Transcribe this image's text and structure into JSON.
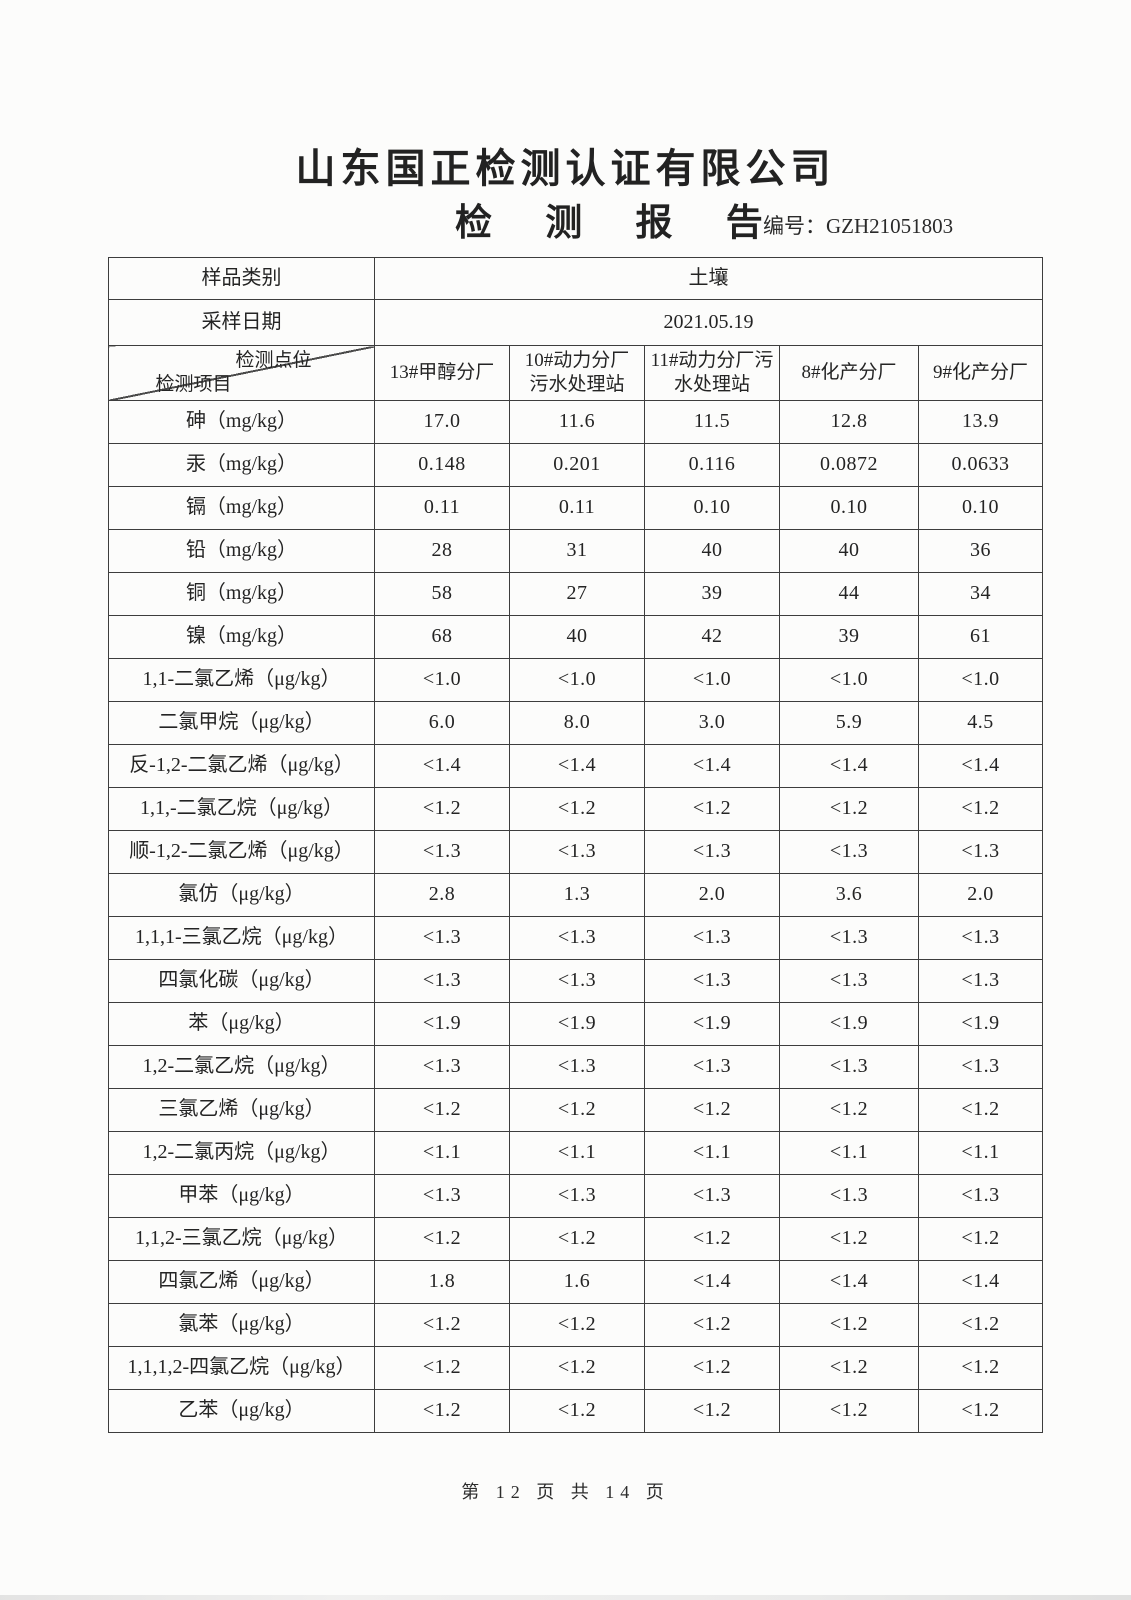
{
  "page": {
    "company": "山东国正检测认证有限公司",
    "report_title": "检 测 报 告",
    "report_no": "编号：GZH21051803",
    "footer": "第 12 页 共 14 页"
  },
  "table": {
    "sample_type_label": "样品类别",
    "sample_type": "土壤",
    "sampling_date_label": "采样日期",
    "sampling_date": "2021.05.19",
    "corner_top": "检测点位",
    "corner_bottom": "检测项目",
    "columns": [
      "13#甲醇分厂",
      "10#动力分厂\n污水处理站",
      "11#动力分厂污\n水处理站",
      "8#化产分厂",
      "9#化产分厂"
    ],
    "rows": [
      {
        "item": "砷（mg/kg）",
        "values": [
          "17.0",
          "11.6",
          "11.5",
          "12.8",
          "13.9"
        ]
      },
      {
        "item": "汞（mg/kg）",
        "values": [
          "0.148",
          "0.201",
          "0.116",
          "0.0872",
          "0.0633"
        ]
      },
      {
        "item": "镉（mg/kg）",
        "values": [
          "0.11",
          "0.11",
          "0.10",
          "0.10",
          "0.10"
        ]
      },
      {
        "item": "铅（mg/kg）",
        "values": [
          "28",
          "31",
          "40",
          "40",
          "36"
        ]
      },
      {
        "item": "铜（mg/kg）",
        "values": [
          "58",
          "27",
          "39",
          "44",
          "34"
        ]
      },
      {
        "item": "镍（mg/kg）",
        "values": [
          "68",
          "40",
          "42",
          "39",
          "61"
        ]
      },
      {
        "item": "1,1-二氯乙烯（μg/kg）",
        "values": [
          "<1.0",
          "<1.0",
          "<1.0",
          "<1.0",
          "<1.0"
        ]
      },
      {
        "item": "二氯甲烷（μg/kg）",
        "values": [
          "6.0",
          "8.0",
          "3.0",
          "5.9",
          "4.5"
        ]
      },
      {
        "item": "反-1,2-二氯乙烯（μg/kg）",
        "values": [
          "<1.4",
          "<1.4",
          "<1.4",
          "<1.4",
          "<1.4"
        ]
      },
      {
        "item": "1,1,-二氯乙烷（μg/kg）",
        "values": [
          "<1.2",
          "<1.2",
          "<1.2",
          "<1.2",
          "<1.2"
        ]
      },
      {
        "item": "顺-1,2-二氯乙烯（μg/kg）",
        "values": [
          "<1.3",
          "<1.3",
          "<1.3",
          "<1.3",
          "<1.3"
        ]
      },
      {
        "item": "氯仿（μg/kg）",
        "values": [
          "2.8",
          "1.3",
          "2.0",
          "3.6",
          "2.0"
        ]
      },
      {
        "item": "1,1,1-三氯乙烷（μg/kg）",
        "values": [
          "<1.3",
          "<1.3",
          "<1.3",
          "<1.3",
          "<1.3"
        ]
      },
      {
        "item": "四氯化碳（μg/kg）",
        "values": [
          "<1.3",
          "<1.3",
          "<1.3",
          "<1.3",
          "<1.3"
        ]
      },
      {
        "item": "苯（μg/kg）",
        "values": [
          "<1.9",
          "<1.9",
          "<1.9",
          "<1.9",
          "<1.9"
        ]
      },
      {
        "item": "1,2-二氯乙烷（μg/kg）",
        "values": [
          "<1.3",
          "<1.3",
          "<1.3",
          "<1.3",
          "<1.3"
        ]
      },
      {
        "item": "三氯乙烯（μg/kg）",
        "values": [
          "<1.2",
          "<1.2",
          "<1.2",
          "<1.2",
          "<1.2"
        ]
      },
      {
        "item": "1,2-二氯丙烷（μg/kg）",
        "values": [
          "<1.1",
          "<1.1",
          "<1.1",
          "<1.1",
          "<1.1"
        ]
      },
      {
        "item": "甲苯（μg/kg）",
        "values": [
          "<1.3",
          "<1.3",
          "<1.3",
          "<1.3",
          "<1.3"
        ]
      },
      {
        "item": "1,1,2-三氯乙烷（μg/kg）",
        "values": [
          "<1.2",
          "<1.2",
          "<1.2",
          "<1.2",
          "<1.2"
        ]
      },
      {
        "item": "四氯乙烯（μg/kg）",
        "values": [
          "1.8",
          "1.6",
          "<1.4",
          "<1.4",
          "<1.4"
        ]
      },
      {
        "item": "氯苯（μg/kg）",
        "values": [
          "<1.2",
          "<1.2",
          "<1.2",
          "<1.2",
          "<1.2"
        ]
      },
      {
        "item": "1,1,1,2-四氯乙烷（μg/kg）",
        "values": [
          "<1.2",
          "<1.2",
          "<1.2",
          "<1.2",
          "<1.2"
        ]
      },
      {
        "item": "乙苯（μg/kg）",
        "values": [
          "<1.2",
          "<1.2",
          "<1.2",
          "<1.2",
          "<1.2"
        ]
      }
    ]
  }
}
